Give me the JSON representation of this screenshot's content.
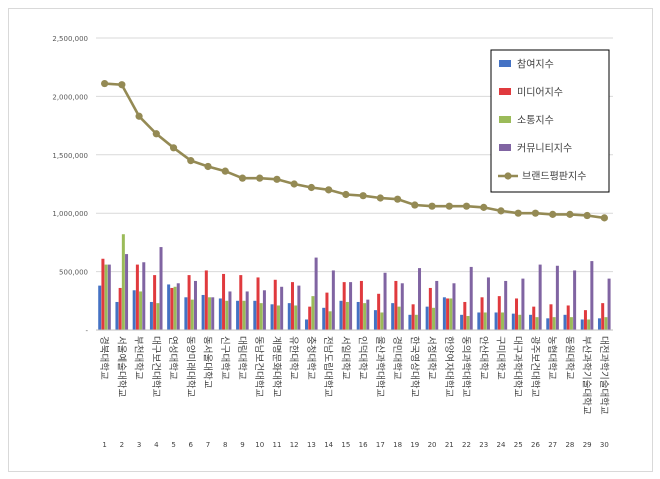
{
  "chart_data": {
    "type": "bar",
    "title": "",
    "xlabel": "",
    "ylabel": "",
    "ylim": [
      0,
      2500000
    ],
    "y_ticks": [
      "-",
      "500,000",
      "1,000,000",
      "1,500,000",
      "2,000,000",
      "2,500,000"
    ],
    "grid": true,
    "legend_position": "top-right",
    "categories": [
      "경북대학교",
      "서울예술대학교",
      "부천대학교",
      "대구보건대학교",
      "연성대학교",
      "동양미래대학교",
      "동서울대학교",
      "신구대학교",
      "대림대학교",
      "동남보건대학교",
      "계명문화대학교",
      "유한대학교",
      "충청대학교",
      "전남도립대학교",
      "서일대학교",
      "인덕대학교",
      "울산과학대학교",
      "경민대학교",
      "한국영상대학교",
      "서정대학교",
      "한양여자대학교",
      "동의과학대학교",
      "안산대학교",
      "구미대학교",
      "대구과학대학교",
      "광주보건대학교",
      "농협대학교",
      "동원대학교",
      "부산과학기술대학교",
      "대전과학기술대학교"
    ],
    "category_labels": [
      "경북대학교",
      "서울예술대학교",
      "부천대학교",
      "대구보건대학교",
      "연성대학교",
      "동양미래대학교",
      "동서울대학교",
      "신구대학교",
      "대림대학교",
      "동남보건대학교",
      "계명문화대학교",
      "유한대학교",
      "충청대학교",
      "전남도립대학교",
      "서일대학교",
      "인덕대학교",
      "울산과학대학교",
      "경민대학교",
      "한국영상대학교",
      "서정대학교",
      "한양여자대학교",
      "동의과학대학교",
      "안산대학교",
      "구미대학교",
      "대구과학대학교",
      "광주보건대학교",
      "농협대학교",
      "동원대학교",
      "부산과학기술대학교",
      "대전과학기술대학교"
    ],
    "ranks": [
      "1",
      "2",
      "3",
      "4",
      "5",
      "6",
      "7",
      "8",
      "9",
      "10",
      "11",
      "12",
      "13",
      "14",
      "15",
      "16",
      "17",
      "18",
      "19",
      "20",
      "21",
      "22",
      "23",
      "24",
      "25",
      "26",
      "27",
      "28",
      "29",
      "30"
    ],
    "series": [
      {
        "name": "참여지수",
        "type": "bar",
        "color": "#4472c4",
        "values": [
          380000,
          240000,
          340000,
          240000,
          390000,
          280000,
          300000,
          270000,
          250000,
          250000,
          220000,
          230000,
          90000,
          190000,
          250000,
          240000,
          170000,
          230000,
          130000,
          200000,
          280000,
          130000,
          150000,
          150000,
          140000,
          130000,
          100000,
          130000,
          90000,
          100000
        ]
      },
      {
        "name": "미디어지수",
        "type": "bar",
        "color": "#e03a3e",
        "values": [
          610000,
          360000,
          560000,
          470000,
          360000,
          470000,
          510000,
          480000,
          470000,
          450000,
          430000,
          410000,
          200000,
          320000,
          410000,
          420000,
          310000,
          420000,
          220000,
          360000,
          270000,
          240000,
          280000,
          290000,
          270000,
          200000,
          220000,
          210000,
          170000,
          230000
        ]
      },
      {
        "name": "소통지수",
        "type": "bar",
        "color": "#9bbb59",
        "values": [
          560000,
          820000,
          330000,
          230000,
          370000,
          260000,
          280000,
          250000,
          250000,
          230000,
          210000,
          210000,
          290000,
          160000,
          240000,
          230000,
          150000,
          200000,
          130000,
          190000,
          270000,
          120000,
          150000,
          150000,
          130000,
          110000,
          110000,
          110000,
          90000,
          110000
        ]
      },
      {
        "name": "커뮤니티지수",
        "type": "bar",
        "color": "#8064a2",
        "values": [
          560000,
          650000,
          580000,
          710000,
          400000,
          420000,
          280000,
          330000,
          330000,
          340000,
          370000,
          380000,
          620000,
          510000,
          410000,
          260000,
          490000,
          400000,
          530000,
          420000,
          400000,
          540000,
          450000,
          420000,
          440000,
          560000,
          550000,
          510000,
          590000,
          440000
        ]
      },
      {
        "name": "브랜드평판지수",
        "type": "line",
        "color": "#948a54",
        "values": [
          2110000,
          2100000,
          1830000,
          1680000,
          1560000,
          1450000,
          1400000,
          1360000,
          1300000,
          1300000,
          1290000,
          1250000,
          1220000,
          1200000,
          1160000,
          1150000,
          1130000,
          1120000,
          1070000,
          1060000,
          1060000,
          1060000,
          1050000,
          1020000,
          1000000,
          1000000,
          990000,
          990000,
          980000,
          960000
        ]
      }
    ]
  }
}
